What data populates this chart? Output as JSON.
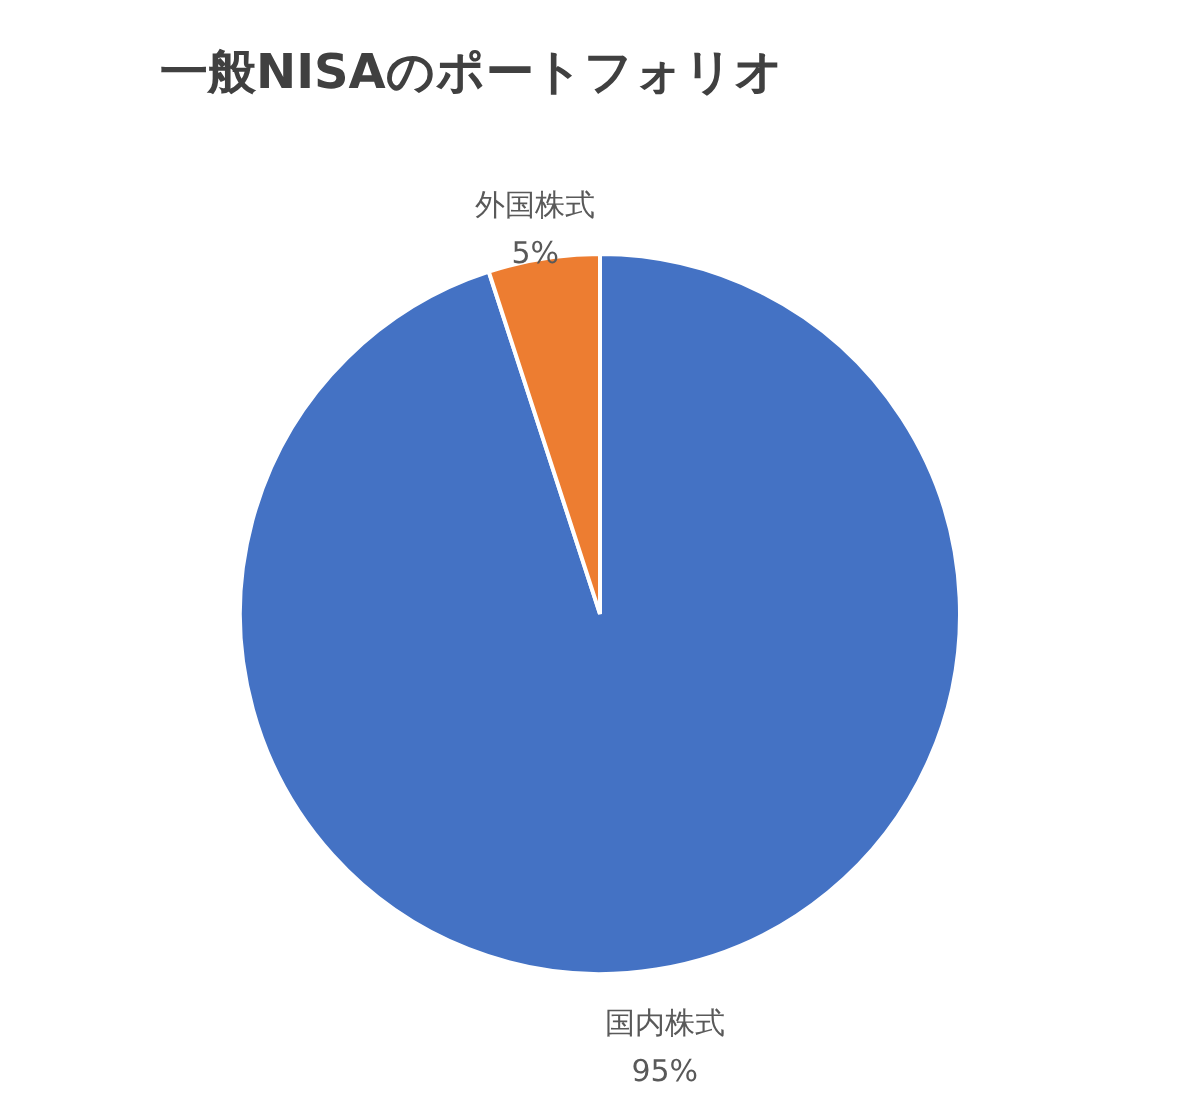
{
  "chart_data": {
    "type": "pie",
    "title": "一般NISAのポートフォリオ",
    "categories": [
      "国内株式",
      "外国株式"
    ],
    "values": [
      95,
      5
    ],
    "colors": [
      "#4472c4",
      "#ed7d31"
    ],
    "value_labels": [
      "95%",
      "5%"
    ],
    "legend": false
  }
}
